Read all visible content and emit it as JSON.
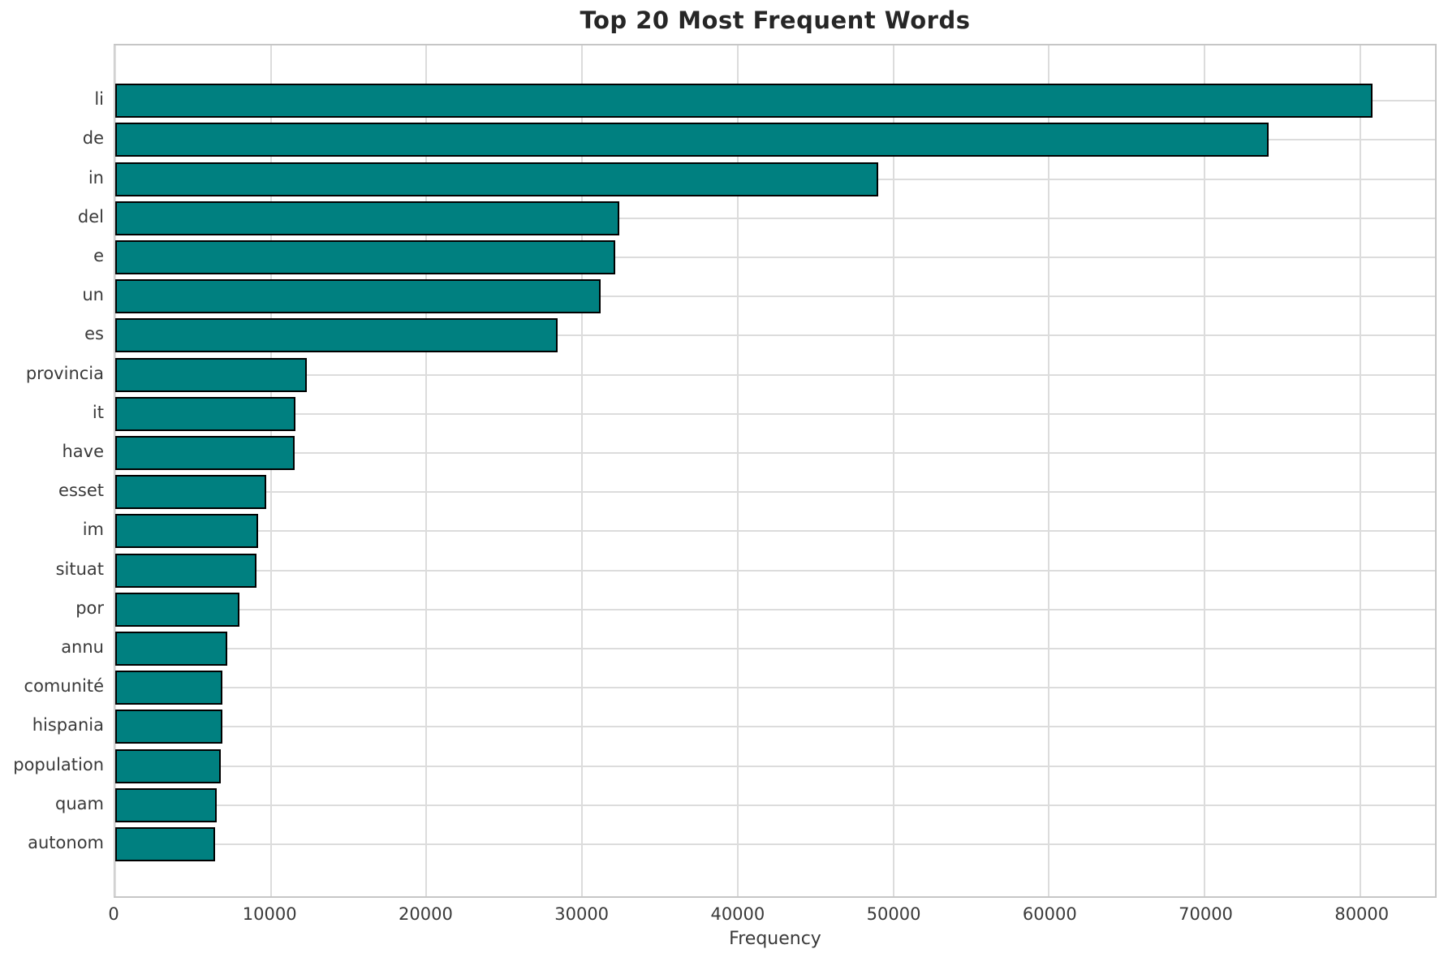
{
  "chart_data": {
    "type": "bar",
    "orientation": "horizontal",
    "title": "Top 20 Most Frequent Words",
    "xlabel": "Frequency",
    "ylabel": "",
    "categories": [
      "li",
      "de",
      "in",
      "del",
      "e",
      "un",
      "es",
      "provincia",
      "it",
      "have",
      "esset",
      "im",
      "situat",
      "por",
      "annu",
      "comunité",
      "hispania",
      "population",
      "quam",
      "autonom"
    ],
    "values": [
      80800,
      74100,
      49000,
      32400,
      32100,
      31200,
      28400,
      12300,
      11600,
      11500,
      9700,
      9200,
      9100,
      8000,
      7200,
      6900,
      6900,
      6800,
      6500,
      6400
    ],
    "xlim": [
      0,
      84800
    ],
    "xticks": [
      0,
      10000,
      20000,
      30000,
      40000,
      50000,
      60000,
      70000,
      80000
    ],
    "grid": true,
    "legend": false,
    "colors": {
      "bar_fill": "#008080",
      "bar_edge": "#000000",
      "grid": "#dcdcdc",
      "spine": "#c6c6c6",
      "title_text": "#262626",
      "tick_text": "#3a3a3a",
      "background": "#ffffff"
    }
  }
}
